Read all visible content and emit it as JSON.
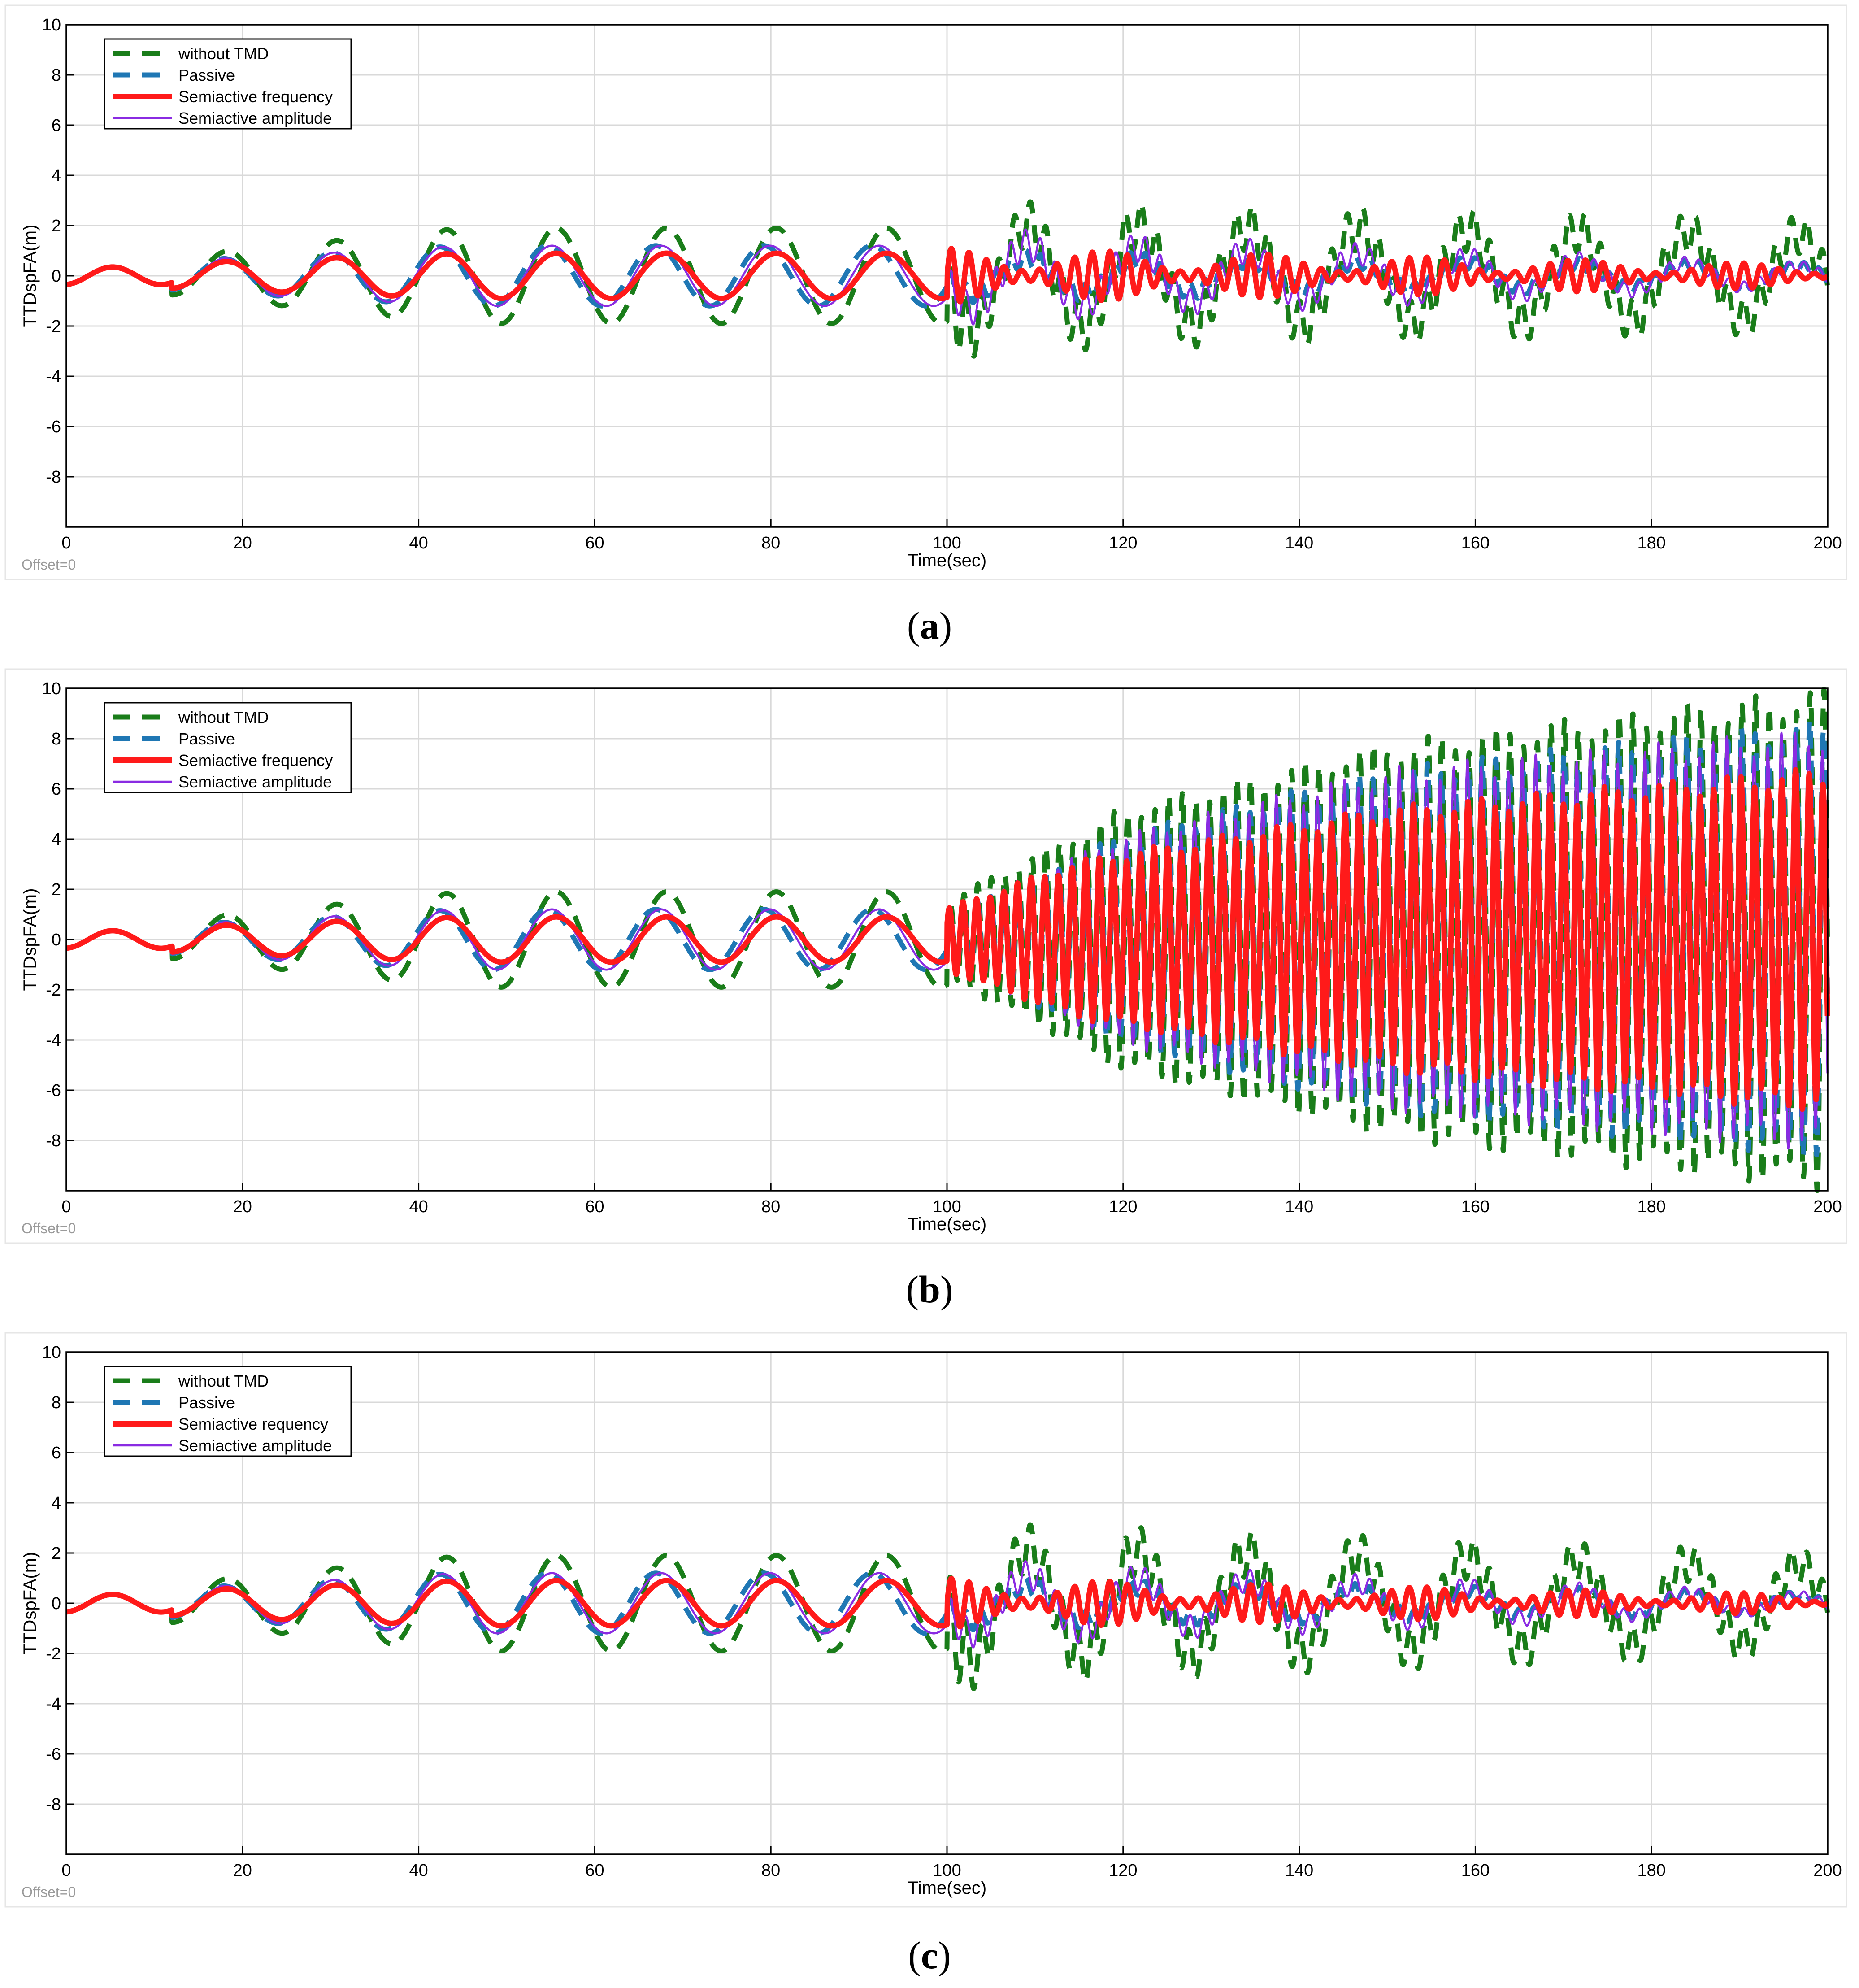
{
  "figure": {
    "captions": [
      "(a)",
      "(b)",
      "(c)"
    ]
  },
  "colors": {
    "without_tmd": "#1a7d1a",
    "passive": "#1f77b4",
    "semiactive_frequency": "#ff1a1a",
    "semiactive_amplitude": "#8a2be2",
    "grid": "#d9d9d9",
    "axis": "#000000"
  },
  "chart_data": [
    {
      "id": "a",
      "type": "line",
      "caption_letter": "a",
      "xlabel": "Time(sec)",
      "ylabel": "TTDspFA(m)",
      "offset_label": "Offset=0",
      "xlim": [
        0,
        200
      ],
      "ylim": [
        -10,
        10
      ],
      "xticks": [
        0,
        20,
        40,
        60,
        80,
        100,
        120,
        140,
        160,
        180,
        200
      ],
      "yticks": [
        -8,
        -6,
        -4,
        -2,
        0,
        2,
        4,
        6,
        8,
        10
      ],
      "grid": true,
      "legend_position": "top-left",
      "legend": [
        "without TMD",
        "Passive",
        "Semiactive frequency",
        "Semiactive amplitude"
      ],
      "series": [
        {
          "name": "without TMD",
          "style": "dashed-thick",
          "peaks_after_100": [
            {
              "t": 110,
              "a": 3.5
            },
            {
              "t": 123,
              "a": 3.0
            },
            {
              "t": 134,
              "a": 2.8
            },
            {
              "t": 147,
              "a": 3.1
            },
            {
              "t": 160,
              "a": 2.6
            },
            {
              "t": 172,
              "a": 2.8
            },
            {
              "t": 185,
              "a": 2.6
            },
            {
              "t": 198,
              "a": 2.2
            }
          ],
          "model": {
            "sweep_amp": 1.9,
            "late_env_start": 2.8,
            "late_env_end": 2.2,
            "late_period": 12.5,
            "late_mod_period": 1.8
          }
        },
        {
          "name": "Passive",
          "style": "dashed-thick",
          "model": {
            "sweep_amp": 1.2,
            "late_env_start": 1.2,
            "late_env_end": 0.6,
            "late_period": 12.5
          }
        },
        {
          "name": "Semiactive frequency",
          "style": "solid-thick",
          "model": {
            "sweep_amp": 0.9,
            "late_env_start": 1.1,
            "late_env_end": 0.45,
            "late_period": 2.0
          }
        },
        {
          "name": "Semiactive amplitude",
          "style": "solid-thin",
          "model": {
            "sweep_amp": 1.2,
            "late_env_start": 2.2,
            "late_env_end": 0.6,
            "late_period": 12.5
          }
        }
      ]
    },
    {
      "id": "b",
      "type": "line",
      "caption_letter": "b",
      "xlabel": "Time(sec)",
      "ylabel": "TTDspFA(m)",
      "offset_label": "Offset=0",
      "xlim": [
        0,
        200
      ],
      "ylim": [
        -10,
        10
      ],
      "xticks": [
        0,
        20,
        40,
        60,
        80,
        100,
        120,
        140,
        160,
        180,
        200
      ],
      "yticks": [
        -8,
        -6,
        -4,
        -2,
        0,
        2,
        4,
        6,
        8,
        10
      ],
      "grid": true,
      "legend_position": "top-left",
      "legend": [
        "without TMD",
        " Passive",
        "Semiactive frequency",
        "Semiactive amplitude"
      ],
      "series": [
        {
          "name": "without TMD",
          "style": "dashed-thick",
          "model": {
            "sweep_amp": 1.9,
            "growth": [
              {
                "t": 100,
                "a": 1.5
              },
              {
                "t": 120,
                "a": 5.0
              },
              {
                "t": 150,
                "a": 7.5
              },
              {
                "t": 200,
                "a": 9.5
              }
            ],
            "late_period": 1.55
          }
        },
        {
          "name": "Passive",
          "style": "dashed-thick",
          "model": {
            "sweep_amp": 1.2,
            "growth": [
              {
                "t": 100,
                "a": 1.0
              },
              {
                "t": 120,
                "a": 4.0
              },
              {
                "t": 150,
                "a": 6.5
              },
              {
                "t": 200,
                "a": 8.3
              }
            ],
            "late_period": 1.55
          }
        },
        {
          "name": "Semiactive frequency",
          "style": "solid-thick",
          "model": {
            "sweep_amp": 0.9,
            "growth": [
              {
                "t": 100,
                "a": 1.2
              },
              {
                "t": 115,
                "a": 3.0
              },
              {
                "t": 150,
                "a": 5.0
              },
              {
                "t": 200,
                "a": 6.5
              }
            ],
            "late_period": 1.55
          }
        },
        {
          "name": "Semiactive amplitude",
          "style": "solid-thin",
          "model": {
            "sweep_amp": 1.2,
            "growth": [
              {
                "t": 100,
                "a": 1.0
              },
              {
                "t": 120,
                "a": 4.0
              },
              {
                "t": 150,
                "a": 6.5
              },
              {
                "t": 200,
                "a": 8.0
              }
            ],
            "late_period": 1.55
          }
        }
      ]
    },
    {
      "id": "c",
      "type": "line",
      "caption_letter": "c",
      "xlabel": "Time(sec)",
      "ylabel": "TTDspFA(m)",
      "offset_label": "Offset=0",
      "xlim": [
        0,
        200
      ],
      "ylim": [
        -10,
        10
      ],
      "xticks": [
        0,
        20,
        40,
        60,
        80,
        100,
        120,
        140,
        160,
        180,
        200
      ],
      "yticks": [
        -8,
        -6,
        -4,
        -2,
        0,
        2,
        4,
        6,
        8,
        10
      ],
      "grid": true,
      "legend_position": "top-left",
      "legend": [
        "without TMD",
        "Passive",
        "Semiactive requency",
        "Semiactive amplitude"
      ],
      "series": [
        {
          "name": "without TMD",
          "style": "dashed-thick",
          "model": {
            "sweep_amp": 1.9,
            "late_env_start": 3.0,
            "late_env_end": 2.0,
            "late_period": 12.5,
            "late_mod_period": 1.8
          }
        },
        {
          "name": "Passive",
          "style": "dashed-thick",
          "model": {
            "sweep_amp": 1.2,
            "late_env_start": 1.2,
            "late_env_end": 0.5,
            "late_period": 12.5
          }
        },
        {
          "name": "Semiactive requency",
          "style": "solid-thick",
          "model": {
            "sweep_amp": 0.9,
            "late_env_start": 1.0,
            "late_env_end": 0.35,
            "late_period": 2.0
          }
        },
        {
          "name": "Semiactive amplitude",
          "style": "solid-thin",
          "model": {
            "sweep_amp": 1.2,
            "late_env_start": 2.0,
            "late_env_end": 0.5,
            "late_period": 12.5
          }
        }
      ]
    }
  ]
}
